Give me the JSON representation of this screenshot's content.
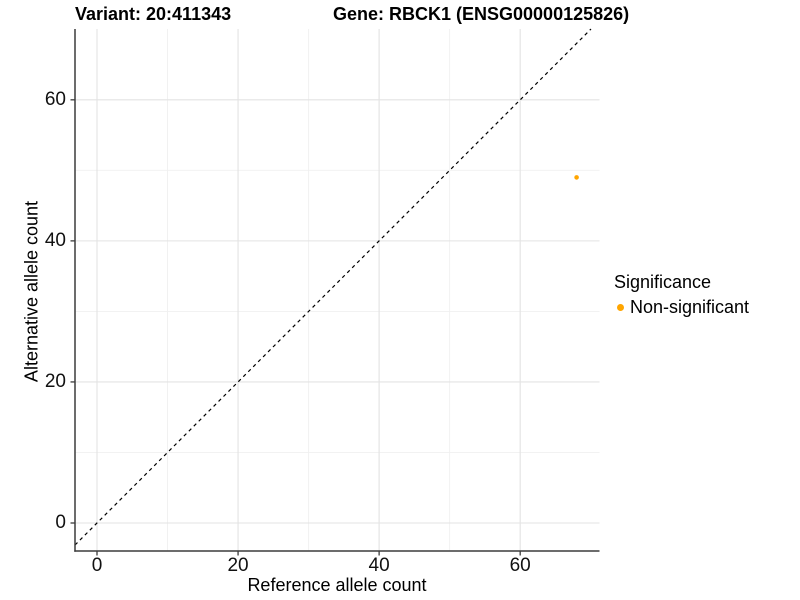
{
  "header": {
    "variant_title": "Variant: 20:411343",
    "gene_title": "Gene: RBCK1 (ENSG00000125826)"
  },
  "chart_data": {
    "type": "scatter",
    "title_left": "Variant: 20:411343",
    "title_right": "Gene: RBCK1 (ENSG00000125826)",
    "xlabel": "Reference allele count",
    "ylabel": "Alternative allele count",
    "xlim": [
      -3.1,
      71.3
    ],
    "ylim": [
      -4,
      70
    ],
    "x_ticks": [
      0,
      20,
      40,
      60
    ],
    "y_ticks": [
      0,
      20,
      40,
      60
    ],
    "x_minor_ticks": [
      10,
      30,
      50
    ],
    "y_minor_ticks": [
      10,
      30,
      50
    ],
    "grid": true,
    "identity_line": {
      "equation": "y = x",
      "style": "dashed",
      "color": "#000000"
    },
    "series": [
      {
        "name": "Non-significant",
        "color": "#FFA500",
        "points": [
          {
            "x": 68,
            "y": 49
          }
        ]
      }
    ],
    "legend": {
      "position": "right",
      "title": "Significance",
      "items": [
        {
          "label": "Non-significant",
          "color": "#FFA500"
        }
      ]
    },
    "colors": {
      "background": "#ffffff",
      "axis_line": "#3c3c3c",
      "grid_major": "#e3e3e3",
      "grid_minor": "#f0f0f0",
      "text": "#000000",
      "point": "#FFA500"
    }
  }
}
